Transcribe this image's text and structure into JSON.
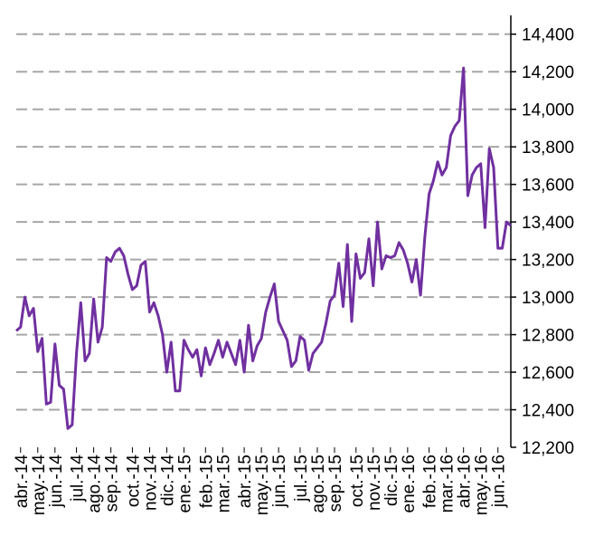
{
  "chart_data": {
    "type": "line",
    "categories": [
      null,
      "abr.-14",
      null,
      null,
      null,
      "may.-14",
      null,
      null,
      null,
      "jun.-14",
      null,
      null,
      null,
      null,
      "jul.-14",
      null,
      null,
      null,
      "ago.-14",
      null,
      null,
      null,
      "sep.-14",
      null,
      null,
      null,
      null,
      "oct.-14",
      null,
      null,
      null,
      "nov.-14",
      null,
      null,
      null,
      "dic.-14",
      null,
      null,
      null,
      "ene.-15",
      null,
      null,
      null,
      null,
      "feb.-15",
      null,
      null,
      null,
      "mar.-15",
      null,
      null,
      null,
      null,
      "abr.-15",
      null,
      null,
      null,
      "may.-15",
      null,
      null,
      null,
      "jun.-15",
      null,
      null,
      null,
      null,
      "jul.-15",
      null,
      null,
      null,
      "ago.-15",
      null,
      null,
      null,
      "sep.-15",
      null,
      null,
      null,
      null,
      "oct.-15",
      null,
      null,
      null,
      "nov.-15",
      null,
      null,
      null,
      "dic.-15",
      null,
      null,
      null,
      "ene.-16",
      null,
      null,
      null,
      null,
      "feb.-16",
      null,
      null,
      null,
      "mar.-16",
      null,
      null,
      null,
      "abr.-16",
      null,
      null,
      null,
      "may.-16",
      null,
      null,
      null,
      "jun.-16",
      null,
      null,
      null
    ],
    "series": [
      {
        "name": null,
        "color": "#7030a0",
        "values": [
          12820,
          12840,
          13000,
          12900,
          12940,
          12710,
          12780,
          12430,
          12440,
          12750,
          12530,
          12510,
          12300,
          12320,
          12700,
          12970,
          12660,
          12700,
          12990,
          12760,
          12840,
          13210,
          13190,
          13240,
          13260,
          13220,
          13120,
          13040,
          13060,
          13170,
          13190,
          12920,
          12970,
          12900,
          12800,
          12600,
          12760,
          12500,
          12500,
          12770,
          12720,
          12680,
          12720,
          12580,
          12730,
          12640,
          12700,
          12770,
          12680,
          12760,
          12700,
          12640,
          12770,
          12600,
          12850,
          12660,
          12740,
          12780,
          12920,
          13000,
          13070,
          12870,
          12820,
          12770,
          12630,
          12660,
          12790,
          12770,
          12610,
          12700,
          12730,
          12760,
          12860,
          12980,
          13010,
          13180,
          12950,
          13280,
          12870,
          13230,
          13100,
          13130,
          13310,
          13060,
          13400,
          13150,
          13220,
          13210,
          13220,
          13290,
          13250,
          13180,
          13080,
          13200,
          13010,
          13320,
          13550,
          13620,
          13720,
          13650,
          13690,
          13860,
          13910,
          13940,
          14220,
          13540,
          13650,
          13690,
          13710,
          13370,
          13790,
          13690,
          13260,
          13260,
          13400,
          13380
        ]
      }
    ],
    "ylim": [
      12200,
      14500
    ],
    "yticks": [
      {
        "value": 12200,
        "label": "12,200"
      },
      {
        "value": 12400,
        "label": "12,400"
      },
      {
        "value": 12600,
        "label": "12,600"
      },
      {
        "value": 12800,
        "label": "12,800"
      },
      {
        "value": 13000,
        "label": "13,000"
      },
      {
        "value": 13200,
        "label": "13,200"
      },
      {
        "value": 13400,
        "label": "13,400"
      },
      {
        "value": 13600,
        "label": "13,600"
      },
      {
        "value": 13800,
        "label": "13,800"
      },
      {
        "value": 14000,
        "label": "14,000"
      },
      {
        "value": 14200,
        "label": "14,200"
      },
      {
        "value": 14400,
        "label": "14,400"
      }
    ],
    "grid": true
  }
}
